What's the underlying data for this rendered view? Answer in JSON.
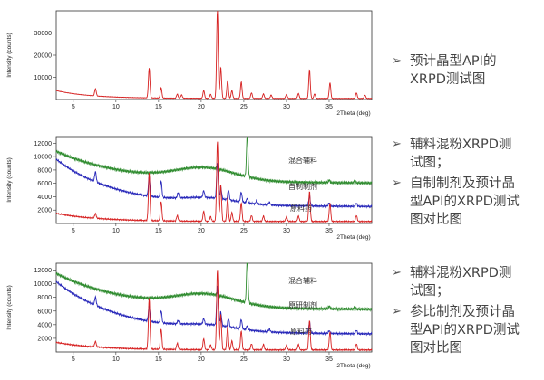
{
  "charts": [
    {
      "type": "line",
      "xlabel": "2Theta (deg)",
      "ylabel": "Intensity (counts)",
      "xlim": [
        3,
        40
      ],
      "ylim": [
        0,
        40000
      ],
      "xticks": [
        5,
        10,
        15,
        20,
        25,
        30,
        35
      ],
      "yticks": [
        10000,
        20000,
        30000
      ],
      "labels": [],
      "series": [
        {
          "color": "#d62020",
          "baseline": 0,
          "base_start": 4000,
          "base_end": 500,
          "decay": 0.25,
          "peaks": [
            [
              7.6,
              3200
            ],
            [
              13.9,
              13500
            ],
            [
              15.3,
              4700
            ],
            [
              17.2,
              1800
            ],
            [
              17.7,
              1500
            ],
            [
              20.3,
              3500
            ],
            [
              21.1,
              1800
            ],
            [
              21.9,
              40000
            ],
            [
              22.3,
              14000
            ],
            [
              23.1,
              8000
            ],
            [
              23.6,
              3500
            ],
            [
              24.7,
              7500
            ],
            [
              25.9,
              2500
            ],
            [
              27.3,
              2000
            ],
            [
              28.2,
              1500
            ],
            [
              30.0,
              1800
            ],
            [
              31.4,
              2200
            ],
            [
              32.7,
              13000
            ],
            [
              33.3,
              2000
            ],
            [
              35.1,
              7000
            ],
            [
              38.2,
              2500
            ],
            [
              39.2,
              1500
            ]
          ]
        }
      ]
    },
    {
      "type": "line",
      "xlabel": "2Theta (deg)",
      "ylabel": "Intensity (counts)",
      "xlim": [
        3,
        40
      ],
      "ylim": [
        0,
        13000
      ],
      "xticks": [
        5,
        10,
        15,
        20,
        25,
        30,
        35
      ],
      "yticks": [
        2000,
        4000,
        6000,
        8000,
        10000,
        12000
      ],
      "labels": [
        "混合辅料",
        "自制制剂",
        "原料药"
      ],
      "series": [
        {
          "color": "#2e8b2e",
          "baseline": 5800,
          "base_start": 10800,
          "base_end": 6000,
          "decay": 0.12,
          "hump": [
            20.5,
            3.5,
            1800
          ],
          "peaks": [
            [
              21.9,
              500
            ],
            [
              25.4,
              6200
            ],
            [
              35.0,
              400
            ],
            [
              38.0,
              300
            ]
          ]
        },
        {
          "color": "#2323b8",
          "baseline": 2200,
          "base_start": 9600,
          "base_end": 2500,
          "decay": 0.14,
          "hump": [
            21.0,
            3.0,
            800
          ],
          "peaks": [
            [
              7.6,
              1500
            ],
            [
              13.9,
              3000
            ],
            [
              15.3,
              2500
            ],
            [
              17.3,
              800
            ],
            [
              20.3,
              1000
            ],
            [
              21.9,
              5300
            ],
            [
              22.3,
              1800
            ],
            [
              23.2,
              1500
            ],
            [
              24.7,
              1500
            ],
            [
              25.4,
              700
            ],
            [
              26.5,
              500
            ],
            [
              28.0,
              400
            ],
            [
              32.7,
              1500
            ],
            [
              35.0,
              500
            ],
            [
              38.2,
              500
            ]
          ]
        },
        {
          "color": "#d62020",
          "baseline": 0,
          "base_start": 1500,
          "base_end": 300,
          "decay": 0.2,
          "peaks": [
            [
              7.6,
              700
            ],
            [
              13.9,
              7200
            ],
            [
              15.3,
              2900
            ],
            [
              17.2,
              800
            ],
            [
              20.3,
              1500
            ],
            [
              21.1,
              700
            ],
            [
              21.9,
              12000
            ],
            [
              22.3,
              5500
            ],
            [
              23.1,
              3500
            ],
            [
              23.6,
              1300
            ],
            [
              24.7,
              2800
            ],
            [
              25.9,
              900
            ],
            [
              27.3,
              800
            ],
            [
              30.0,
              700
            ],
            [
              31.4,
              800
            ],
            [
              32.7,
              4500
            ],
            [
              35.1,
              2700
            ],
            [
              38.2,
              900
            ]
          ]
        }
      ]
    },
    {
      "type": "line",
      "xlabel": "2Theta (deg)",
      "ylabel": "Intensity (counts)",
      "xlim": [
        3,
        40
      ],
      "ylim": [
        0,
        13000
      ],
      "xticks": [
        5,
        10,
        15,
        20,
        25,
        30,
        35
      ],
      "yticks": [
        2000,
        4000,
        6000,
        8000,
        10000,
        12000
      ],
      "labels": [
        "混合辅料",
        "原研制剂",
        "原料药"
      ],
      "series": [
        {
          "color": "#2e8b2e",
          "baseline": 5900,
          "base_start": 11500,
          "base_end": 6200,
          "decay": 0.12,
          "hump": [
            20.5,
            3.5,
            1700
          ],
          "peaks": [
            [
              21.9,
              400
            ],
            [
              25.4,
              6500
            ],
            [
              35.0,
              400
            ],
            [
              38.0,
              300
            ]
          ]
        },
        {
          "color": "#2323b8",
          "baseline": 2300,
          "base_start": 10300,
          "base_end": 2600,
          "decay": 0.13,
          "hump": [
            21.0,
            3.0,
            700
          ],
          "peaks": [
            [
              7.6,
              1200
            ],
            [
              13.9,
              2300
            ],
            [
              15.3,
              1800
            ],
            [
              17.3,
              500
            ],
            [
              20.3,
              800
            ],
            [
              21.9,
              5800
            ],
            [
              22.3,
              2000
            ],
            [
              23.2,
              1200
            ],
            [
              24.7,
              1400
            ],
            [
              25.4,
              600
            ],
            [
              28.0,
              400
            ],
            [
              32.7,
              1600
            ],
            [
              35.0,
              400
            ],
            [
              38.2,
              500
            ]
          ]
        },
        {
          "color": "#d62020",
          "baseline": 0,
          "base_start": 1400,
          "base_end": 300,
          "decay": 0.2,
          "peaks": [
            [
              7.6,
              800
            ],
            [
              13.9,
              7500
            ],
            [
              15.3,
              3000
            ],
            [
              17.2,
              900
            ],
            [
              20.3,
              1600
            ],
            [
              21.1,
              700
            ],
            [
              21.9,
              11800
            ],
            [
              22.3,
              5200
            ],
            [
              23.1,
              3400
            ],
            [
              23.6,
              1300
            ],
            [
              24.7,
              2800
            ],
            [
              25.9,
              900
            ],
            [
              27.3,
              800
            ],
            [
              30.0,
              700
            ],
            [
              31.4,
              800
            ],
            [
              32.7,
              4300
            ],
            [
              35.1,
              2600
            ],
            [
              38.2,
              900
            ]
          ]
        }
      ]
    }
  ],
  "bullets": [
    {
      "glyph": "➢",
      "lines": [
        "预计晶型API的",
        "XRPD测试图"
      ]
    },
    {
      "glyph": "➢",
      "lines": [
        "辅料混粉XRPD测",
        "试图；"
      ]
    },
    {
      "glyph": "➢",
      "lines": [
        "自制制剂及预计晶",
        "型API的XRPD测试",
        "图对比图"
      ]
    },
    {
      "glyph": "➢",
      "lines": [
        "辅料混粉XRPD测",
        "试图；"
      ]
    },
    {
      "glyph": "➢",
      "lines": [
        "参比制剂及预计晶",
        "型API的XRPD测试",
        "图对比图"
      ]
    }
  ]
}
